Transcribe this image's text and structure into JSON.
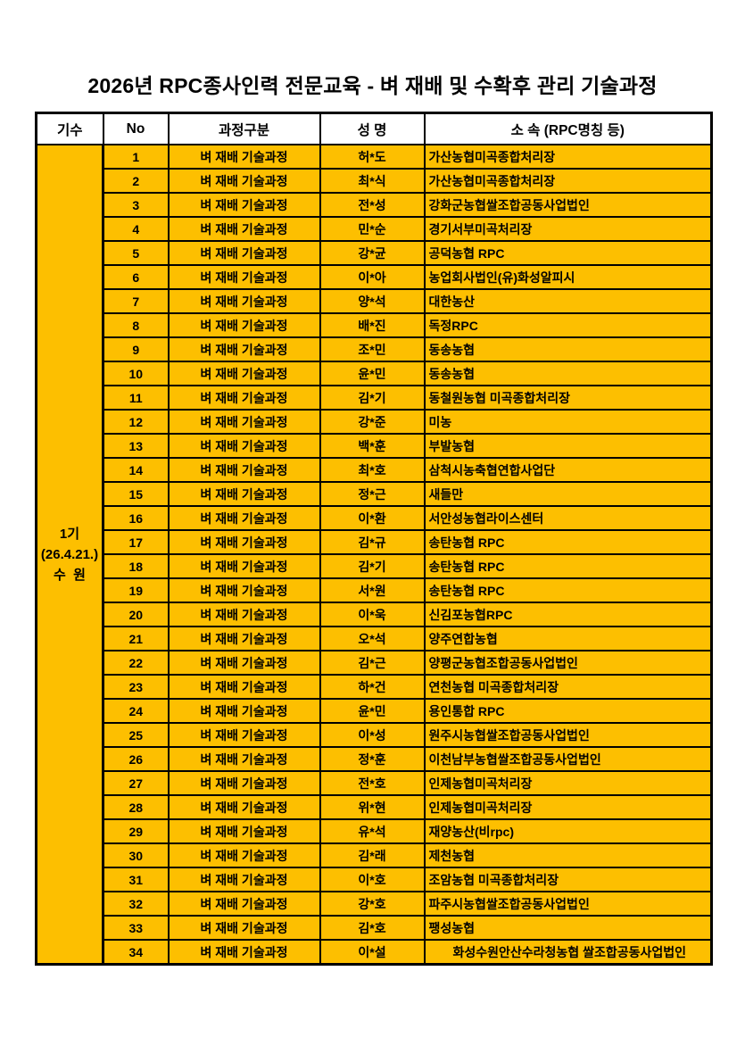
{
  "title": "2026년 RPC종사인력 전문교육 - 벼 재배 및 수확후 관리 기술과정",
  "colors": {
    "cell_fill": "#FDBF00",
    "border": "#000000",
    "page_bg": "#FFFFFF"
  },
  "table": {
    "headers": [
      "기수",
      "No",
      "과정구분",
      "성 명",
      "소 속 (RPC명칭 등)"
    ],
    "cohort": {
      "lines": [
        "1기",
        "(26.4.21.)",
        "수  원"
      ]
    },
    "rows": [
      {
        "no": "1",
        "course": "벼 재배 기술과정",
        "name": "허*도",
        "org": "가산농협미곡종합처리장"
      },
      {
        "no": "2",
        "course": "벼 재배 기술과정",
        "name": "최*식",
        "org": "가산농협미곡종합처리장"
      },
      {
        "no": "3",
        "course": "벼 재배 기술과정",
        "name": "전*성",
        "org": "강화군농협쌀조합공동사업법인"
      },
      {
        "no": "4",
        "course": "벼 재배 기술과정",
        "name": "민*순",
        "org": "경기서부미곡처리장"
      },
      {
        "no": "5",
        "course": "벼 재배 기술과정",
        "name": "강*균",
        "org": "공덕농협 RPC"
      },
      {
        "no": "6",
        "course": "벼 재배 기술과정",
        "name": "이*아",
        "org": "농업회사법인(유)화성알피시"
      },
      {
        "no": "7",
        "course": "벼 재배 기술과정",
        "name": "양*석",
        "org": "대한농산"
      },
      {
        "no": "8",
        "course": "벼 재배 기술과정",
        "name": "배*진",
        "org": "독정RPC"
      },
      {
        "no": "9",
        "course": "벼 재배 기술과정",
        "name": "조*민",
        "org": "동송농협"
      },
      {
        "no": "10",
        "course": "벼 재배 기술과정",
        "name": "윤*민",
        "org": "동송농협"
      },
      {
        "no": "11",
        "course": "벼 재배 기술과정",
        "name": "김*기",
        "org": "동철원농협 미곡종합처리장"
      },
      {
        "no": "12",
        "course": "벼 재배 기술과정",
        "name": "강*준",
        "org": "미농"
      },
      {
        "no": "13",
        "course": "벼 재배 기술과정",
        "name": "백*훈",
        "org": "부발농협"
      },
      {
        "no": "14",
        "course": "벼 재배 기술과정",
        "name": "최*호",
        "org": "삼척시농축협연합사업단"
      },
      {
        "no": "15",
        "course": "벼 재배 기술과정",
        "name": "정*근",
        "org": "새들만"
      },
      {
        "no": "16",
        "course": "벼 재배 기술과정",
        "name": "이*환",
        "org": "서안성농협라이스센터"
      },
      {
        "no": "17",
        "course": "벼 재배 기술과정",
        "name": "김*규",
        "org": "송탄농협 RPC"
      },
      {
        "no": "18",
        "course": "벼 재배 기술과정",
        "name": "김*기",
        "org": "송탄농협 RPC"
      },
      {
        "no": "19",
        "course": "벼 재배 기술과정",
        "name": "서*원",
        "org": "송탄농협 RPC"
      },
      {
        "no": "20",
        "course": "벼 재배 기술과정",
        "name": "이*욱",
        "org": "신김포농협RPC"
      },
      {
        "no": "21",
        "course": "벼 재배 기술과정",
        "name": "오*석",
        "org": "양주연합농협"
      },
      {
        "no": "22",
        "course": "벼 재배 기술과정",
        "name": "김*근",
        "org": "양평군농협조합공동사업법인"
      },
      {
        "no": "23",
        "course": "벼 재배 기술과정",
        "name": "하*건",
        "org": "연천농협 미곡종합처리장"
      },
      {
        "no": "24",
        "course": "벼 재배 기술과정",
        "name": "윤*민",
        "org": "용인통합 RPC"
      },
      {
        "no": "25",
        "course": "벼 재배 기술과정",
        "name": "이*성",
        "org": "원주시농협쌀조합공동사업법인"
      },
      {
        "no": "26",
        "course": "벼 재배 기술과정",
        "name": "정*훈",
        "org": "이천남부농협쌀조합공동사업법인"
      },
      {
        "no": "27",
        "course": "벼 재배 기술과정",
        "name": "전*호",
        "org": "인제농협미곡처리장"
      },
      {
        "no": "28",
        "course": "벼 재배 기술과정",
        "name": "위*현",
        "org": "인제농협미곡처리장"
      },
      {
        "no": "29",
        "course": "벼 재배 기술과정",
        "name": "유*석",
        "org": "재양농산(비rpc)"
      },
      {
        "no": "30",
        "course": "벼 재배 기술과정",
        "name": "김*래",
        "org": "제천농협"
      },
      {
        "no": "31",
        "course": "벼 재배 기술과정",
        "name": "이*호",
        "org": "조암농협 미곡종합처리장"
      },
      {
        "no": "32",
        "course": "벼 재배 기술과정",
        "name": "강*호",
        "org": "파주시농협쌀조합공동사업법인"
      },
      {
        "no": "33",
        "course": "벼 재배 기술과정",
        "name": "김*호",
        "org": "팽성농협"
      },
      {
        "no": "34",
        "course": "벼 재배 기술과정",
        "name": "이*설",
        "org": "화성수원안산수라청농협 쌀조합공동사업법인",
        "org_align": "center"
      }
    ]
  }
}
